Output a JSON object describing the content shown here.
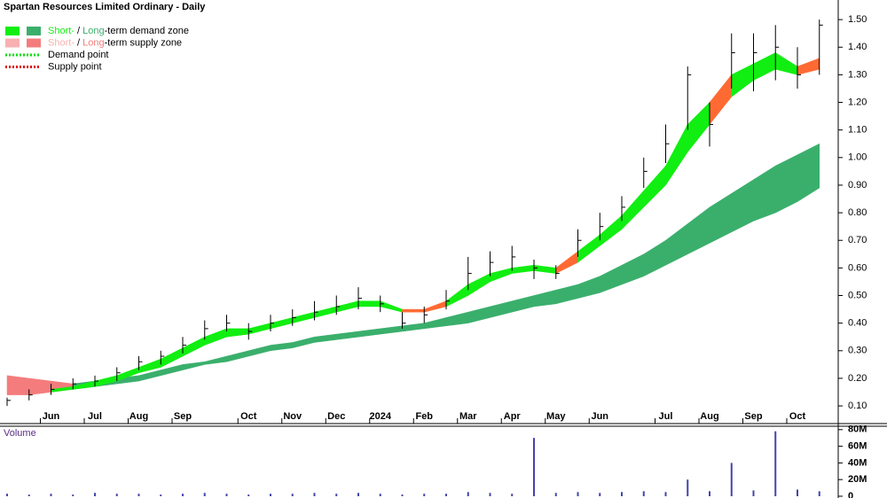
{
  "chart_data": [
    {
      "type": "price-zones",
      "title": "Spartan Resources Limited Ordinary - Daily",
      "categories": [
        null,
        null,
        "Jun",
        null,
        "Jul",
        null,
        "Aug",
        null,
        "Sep",
        null,
        null,
        "Oct",
        null,
        "Nov",
        null,
        "Dec",
        null,
        "2024",
        null,
        "Feb",
        null,
        "Mar",
        null,
        "Apr",
        null,
        "May",
        null,
        "Jun",
        null,
        null,
        "Jul",
        null,
        "Aug",
        null,
        "Sep",
        null,
        "Oct",
        null
      ],
      "high": [
        0.13,
        0.16,
        0.18,
        0.2,
        0.21,
        0.24,
        0.28,
        0.3,
        0.35,
        0.41,
        0.43,
        0.4,
        0.43,
        0.45,
        0.48,
        0.5,
        0.53,
        0.5,
        0.44,
        0.46,
        0.52,
        0.64,
        0.66,
        0.68,
        0.63,
        0.61,
        0.74,
        0.8,
        0.86,
        1.0,
        1.12,
        1.33,
        1.2,
        1.45,
        1.45,
        1.48,
        1.4,
        1.5
      ],
      "low": [
        0.1,
        0.12,
        0.14,
        0.16,
        0.17,
        0.19,
        0.23,
        0.25,
        0.29,
        0.34,
        0.37,
        0.34,
        0.37,
        0.39,
        0.41,
        0.43,
        0.45,
        0.44,
        0.38,
        0.4,
        0.45,
        0.52,
        0.57,
        0.59,
        0.56,
        0.56,
        0.64,
        0.7,
        0.77,
        0.89,
        0.98,
        1.1,
        1.04,
        1.25,
        1.24,
        1.28,
        1.25,
        1.3
      ],
      "close": [
        0.12,
        0.14,
        0.16,
        0.18,
        0.19,
        0.22,
        0.26,
        0.28,
        0.32,
        0.38,
        0.4,
        0.37,
        0.4,
        0.42,
        0.44,
        0.46,
        0.49,
        0.47,
        0.4,
        0.43,
        0.48,
        0.58,
        0.62,
        0.64,
        0.6,
        0.58,
        0.7,
        0.75,
        0.82,
        0.95,
        1.05,
        1.3,
        1.12,
        1.38,
        1.38,
        1.4,
        1.3,
        1.48
      ],
      "bar_color": "#000000",
      "short_term": {
        "upper": [
          null,
          null,
          0.16,
          0.17,
          0.19,
          0.21,
          0.24,
          0.27,
          0.31,
          0.35,
          0.38,
          0.38,
          0.4,
          0.42,
          0.44,
          0.46,
          0.48,
          0.48,
          0.45,
          0.45,
          0.48,
          0.54,
          0.58,
          0.6,
          0.61,
          0.6,
          0.66,
          0.72,
          0.79,
          0.88,
          0.97,
          1.12,
          1.2,
          1.3,
          1.34,
          1.38,
          1.33,
          1.36
        ],
        "lower": [
          null,
          null,
          0.15,
          0.16,
          0.17,
          0.19,
          0.22,
          0.24,
          0.28,
          0.32,
          0.35,
          0.36,
          0.38,
          0.4,
          0.42,
          0.44,
          0.46,
          0.46,
          0.44,
          0.44,
          0.46,
          0.5,
          0.55,
          0.58,
          0.59,
          0.58,
          0.62,
          0.68,
          0.74,
          0.82,
          0.9,
          1.02,
          1.12,
          1.22,
          1.28,
          1.32,
          1.3,
          1.32
        ],
        "demand_color": "#11ee11",
        "supply_color": "#ff6a33"
      },
      "long_term": {
        "upper": [
          0.21,
          0.2,
          0.19,
          0.18,
          0.19,
          0.2,
          0.21,
          0.23,
          0.25,
          0.26,
          0.28,
          0.3,
          0.32,
          0.33,
          0.35,
          0.36,
          0.37,
          0.38,
          0.39,
          0.4,
          0.42,
          0.44,
          0.46,
          0.48,
          0.5,
          0.52,
          0.54,
          0.57,
          0.61,
          0.65,
          0.7,
          0.76,
          0.82,
          0.87,
          0.92,
          0.97,
          1.01,
          1.05
        ],
        "lower": [
          0.14,
          0.14,
          0.15,
          0.16,
          0.17,
          0.18,
          0.19,
          0.21,
          0.23,
          0.25,
          0.26,
          0.28,
          0.3,
          0.31,
          0.33,
          0.34,
          0.35,
          0.36,
          0.37,
          0.38,
          0.39,
          0.4,
          0.42,
          0.44,
          0.46,
          0.47,
          0.49,
          0.51,
          0.54,
          0.57,
          0.61,
          0.65,
          0.69,
          0.73,
          0.77,
          0.8,
          0.84,
          0.89
        ],
        "demand_color": "#3aaf6c",
        "supply_color": "#f47c7c"
      },
      "ylim": [
        0.036,
        1.571
      ],
      "yticks": [
        {
          "value": 0.1,
          "label": "0.10"
        },
        {
          "value": 0.2,
          "label": "0.20"
        },
        {
          "value": 0.3,
          "label": "0.30"
        },
        {
          "value": 0.4,
          "label": "0.40"
        },
        {
          "value": 0.5,
          "label": "0.50"
        },
        {
          "value": 0.6,
          "label": "0.60"
        },
        {
          "value": 0.7,
          "label": "0.70"
        },
        {
          "value": 0.8,
          "label": "0.80"
        },
        {
          "value": 0.9,
          "label": "0.90"
        },
        {
          "value": 1.0,
          "label": "1.00"
        },
        {
          "value": 1.1,
          "label": "1.10"
        },
        {
          "value": 1.2,
          "label": "1.20"
        },
        {
          "value": 1.3,
          "label": "1.30"
        },
        {
          "value": 1.4,
          "label": "1.40"
        },
        {
          "value": 1.5,
          "label": "1.50"
        }
      ],
      "legend": [
        {
          "parts": [
            "Short-",
            " / ",
            "Long",
            "-term demand zone"
          ],
          "colors": [
            "#11ee11",
            "#3aaf6c"
          ]
        },
        {
          "parts": [
            "Short-",
            " / ",
            "Long",
            "-term supply zone"
          ],
          "colors": [
            "#f9b0b0",
            "#f47c7c"
          ]
        },
        {
          "parts": [
            "Demand point"
          ],
          "colors": [
            "#11dd11"
          ]
        },
        {
          "parts": [
            "Supply point"
          ],
          "colors": [
            "#dd1111"
          ]
        }
      ]
    },
    {
      "type": "volume",
      "title": "Volume",
      "values": [
        3,
        2,
        3,
        2,
        4,
        3,
        3,
        2,
        3,
        4,
        3,
        2,
        3,
        3,
        4,
        3,
        4,
        3,
        2,
        3,
        3,
        5,
        4,
        3,
        70,
        4,
        5,
        4,
        5,
        6,
        5,
        20,
        6,
        40,
        7,
        78,
        8,
        6
      ],
      "color": "#4444aa",
      "ylim": [
        0,
        83
      ],
      "yticks": [
        {
          "value": 0,
          "label": "0"
        },
        {
          "value": 20,
          "label": "20M"
        },
        {
          "value": 40,
          "label": "40M"
        },
        {
          "value": 60,
          "label": "60M"
        },
        {
          "value": 80,
          "label": "80M"
        }
      ]
    }
  ]
}
